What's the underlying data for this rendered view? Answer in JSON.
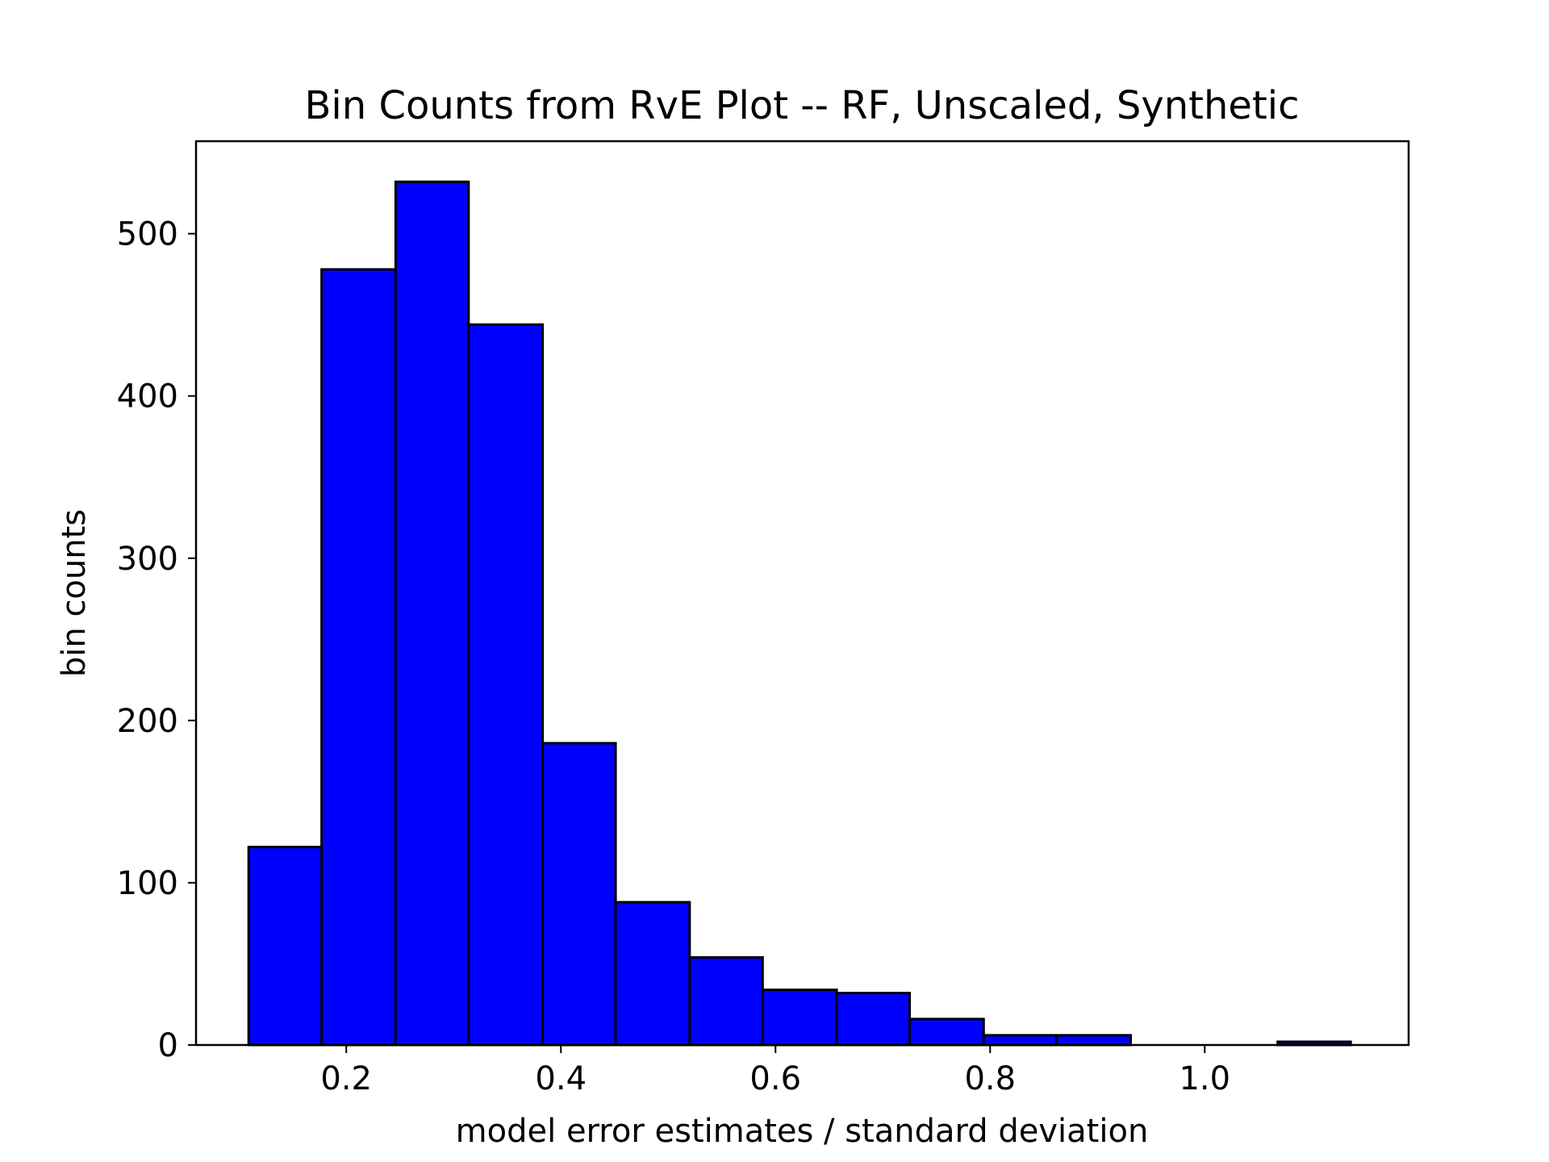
{
  "chart_data": {
    "type": "bar",
    "title": "Bin Counts from RvE Plot -- RF, Unscaled, Synthetic",
    "xlabel": "model error estimates / standard deviation",
    "ylabel": "bin counts",
    "xlim": [
      0.06,
      1.19
    ],
    "ylim": [
      0,
      557
    ],
    "xticks": [
      0.2,
      0.4,
      0.6,
      0.8,
      1.0
    ],
    "xtick_labels": [
      "0.2",
      "0.4",
      "0.6",
      "0.8",
      "1.0"
    ],
    "yticks": [
      0,
      100,
      200,
      300,
      400,
      500
    ],
    "ytick_labels": [
      "0",
      "100",
      "200",
      "300",
      "400",
      "500"
    ],
    "bin_edges": [
      0.109,
      0.177,
      0.246,
      0.314,
      0.383,
      0.451,
      0.52,
      0.588,
      0.657,
      0.725,
      0.794,
      0.862,
      0.931,
      0.999,
      1.068,
      1.136
    ],
    "values": [
      122,
      478,
      532,
      444,
      186,
      88,
      54,
      34,
      32,
      16,
      6,
      6,
      0,
      0,
      2
    ],
    "bar_color": "#0000ff",
    "edge_color": "#000000",
    "grid": false,
    "legend": "none"
  }
}
